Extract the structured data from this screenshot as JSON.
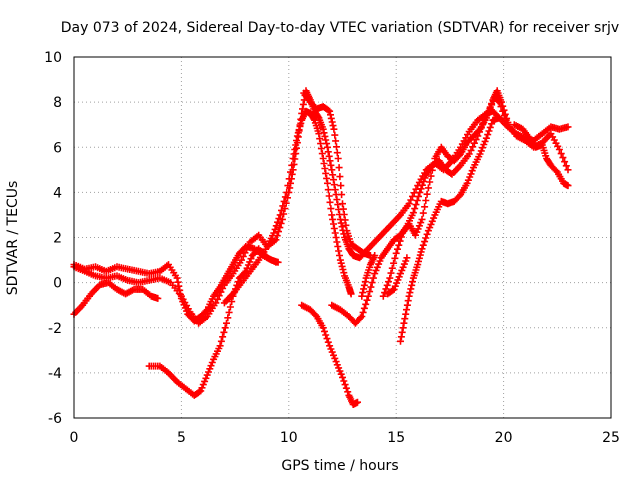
{
  "chart_data": {
    "type": "scatter",
    "title": "Day 073 of 2024, Sidereal Day-to-day VTEC variation (SDTVAR) for receiver srjv",
    "xlabel": "GPS time / hours",
    "ylabel": "SDTVAR / TECUs",
    "xlim": [
      0,
      25
    ],
    "ylim": [
      -6,
      10
    ],
    "xticks": [
      "0",
      "5",
      "10",
      "15",
      "20",
      "25"
    ],
    "yticks": [
      "-6",
      "-4",
      "-2",
      "0",
      "2",
      "4",
      "6",
      "8",
      "10"
    ],
    "grid": true,
    "marker": "+",
    "series": [
      {
        "color": "#ff0000",
        "points": [
          [
            0.0,
            0.8
          ],
          [
            0.5,
            0.6
          ],
          [
            1.0,
            0.7
          ],
          [
            1.5,
            0.5
          ],
          [
            2.0,
            0.7
          ],
          [
            2.5,
            0.6
          ],
          [
            3.0,
            0.5
          ],
          [
            3.5,
            0.4
          ],
          [
            4.0,
            0.5
          ],
          [
            4.4,
            0.8
          ],
          [
            4.8,
            0.2
          ],
          [
            5.0,
            -0.7
          ],
          [
            5.3,
            -1.4
          ],
          [
            5.6,
            -1.7
          ],
          [
            5.9,
            -1.5
          ],
          [
            6.2,
            -1.2
          ],
          [
            6.5,
            -0.6
          ],
          [
            6.8,
            -0.2
          ],
          [
            7.1,
            0.3
          ],
          [
            7.4,
            0.8
          ],
          [
            7.7,
            1.3
          ],
          [
            8.0,
            1.6
          ],
          [
            8.4,
            1.5
          ],
          [
            8.8,
            1.2
          ],
          [
            9.2,
            1.0
          ],
          [
            9.5,
            0.9
          ]
        ]
      },
      {
        "color": "#ff0000",
        "points": [
          [
            0.0,
            0.7
          ],
          [
            0.5,
            0.5
          ],
          [
            1.0,
            0.3
          ],
          [
            1.5,
            0.2
          ],
          [
            2.0,
            0.3
          ],
          [
            2.5,
            0.1
          ],
          [
            3.0,
            0.0
          ],
          [
            3.5,
            0.1
          ],
          [
            4.0,
            0.2
          ],
          [
            4.5,
            0.0
          ],
          [
            5.0,
            -0.6
          ],
          [
            5.4,
            -1.3
          ],
          [
            5.8,
            -1.8
          ],
          [
            6.2,
            -1.5
          ],
          [
            6.6,
            -0.9
          ],
          [
            7.0,
            -0.1
          ],
          [
            7.4,
            0.4
          ],
          [
            7.8,
            1.0
          ],
          [
            8.2,
            1.8
          ],
          [
            8.6,
            2.1
          ],
          [
            9.0,
            1.6
          ],
          [
            9.4,
            1.9
          ],
          [
            9.7,
            2.8
          ],
          [
            10.0,
            4.0
          ],
          [
            10.2,
            5.0
          ],
          [
            10.4,
            6.2
          ],
          [
            10.6,
            7.5
          ],
          [
            10.8,
            8.5
          ],
          [
            11.0,
            8.1
          ],
          [
            11.2,
            7.6
          ],
          [
            11.4,
            7.3
          ],
          [
            11.6,
            6.8
          ],
          [
            11.8,
            6.0
          ],
          [
            12.0,
            5.0
          ],
          [
            12.2,
            3.9
          ],
          [
            12.4,
            2.8
          ],
          [
            12.6,
            2.0
          ],
          [
            12.8,
            1.5
          ],
          [
            13.0,
            1.2
          ],
          [
            13.3,
            1.1
          ],
          [
            13.6,
            1.4
          ],
          [
            14.0,
            1.8
          ],
          [
            14.4,
            2.2
          ],
          [
            14.8,
            2.6
          ],
          [
            15.2,
            3.0
          ],
          [
            15.6,
            3.5
          ],
          [
            16.0,
            4.3
          ],
          [
            16.4,
            5.0
          ],
          [
            16.8,
            5.3
          ],
          [
            17.2,
            5.0
          ],
          [
            17.6,
            5.4
          ],
          [
            18.0,
            6.0
          ],
          [
            18.4,
            6.7
          ],
          [
            18.8,
            7.2
          ],
          [
            19.2,
            7.5
          ],
          [
            19.5,
            7.6
          ],
          [
            19.8,
            7.3
          ],
          [
            20.2,
            6.9
          ],
          [
            20.6,
            6.6
          ],
          [
            21.0,
            6.4
          ],
          [
            21.4,
            6.3
          ],
          [
            21.8,
            6.6
          ],
          [
            22.2,
            6.9
          ],
          [
            22.6,
            6.8
          ],
          [
            23.0,
            6.9
          ]
        ]
      },
      {
        "color": "#ff0000",
        "points": [
          [
            0.0,
            -1.4
          ],
          [
            0.4,
            -1.0
          ],
          [
            0.8,
            -0.5
          ],
          [
            1.2,
            -0.1
          ],
          [
            1.6,
            0.0
          ],
          [
            2.0,
            -0.3
          ],
          [
            2.4,
            -0.5
          ],
          [
            2.8,
            -0.3
          ],
          [
            3.2,
            -0.3
          ],
          [
            3.6,
            -0.6
          ],
          [
            3.9,
            -0.7
          ]
        ]
      },
      {
        "color": "#ff0000",
        "points": [
          [
            3.5,
            -3.7
          ],
          [
            4.0,
            -3.7
          ],
          [
            4.4,
            -4.0
          ],
          [
            4.8,
            -4.4
          ],
          [
            5.2,
            -4.7
          ],
          [
            5.6,
            -5.0
          ],
          [
            5.9,
            -4.8
          ],
          [
            6.2,
            -4.1
          ],
          [
            6.5,
            -3.4
          ],
          [
            6.8,
            -2.8
          ],
          [
            7.1,
            -1.8
          ],
          [
            7.4,
            -0.6
          ],
          [
            7.7,
            0.2
          ],
          [
            8.0,
            0.5
          ],
          [
            8.3,
            1.2
          ],
          [
            8.6,
            1.5
          ],
          [
            9.0,
            1.1
          ],
          [
            9.4,
            0.9
          ]
        ]
      },
      {
        "color": "#ff0000",
        "points": [
          [
            7.0,
            -0.9
          ],
          [
            7.4,
            -0.5
          ],
          [
            7.8,
            0.0
          ],
          [
            8.2,
            0.5
          ],
          [
            8.6,
            1.0
          ],
          [
            9.0,
            1.6
          ],
          [
            9.3,
            2.2
          ],
          [
            9.6,
            3.0
          ],
          [
            9.9,
            4.0
          ],
          [
            10.2,
            5.5
          ],
          [
            10.4,
            6.5
          ],
          [
            10.6,
            7.2
          ],
          [
            10.8,
            7.6
          ],
          [
            11.0,
            7.5
          ],
          [
            11.2,
            7.2
          ],
          [
            11.4,
            6.6
          ],
          [
            11.6,
            5.5
          ],
          [
            11.8,
            4.4
          ],
          [
            12.0,
            3.0
          ],
          [
            12.2,
            2.0
          ],
          [
            12.4,
            1.0
          ],
          [
            12.6,
            0.3
          ],
          [
            12.8,
            -0.2
          ],
          [
            12.9,
            -0.5
          ]
        ]
      },
      {
        "color": "#ff0000",
        "points": [
          [
            10.6,
            -1.0
          ],
          [
            11.0,
            -1.2
          ],
          [
            11.3,
            -1.5
          ],
          [
            11.6,
            -2.0
          ],
          [
            11.9,
            -2.8
          ],
          [
            12.2,
            -3.5
          ],
          [
            12.5,
            -4.2
          ],
          [
            12.8,
            -5.0
          ],
          [
            13.0,
            -5.4
          ],
          [
            13.2,
            -5.3
          ]
        ]
      },
      {
        "color": "#ff0000",
        "points": [
          [
            10.7,
            8.4
          ],
          [
            11.0,
            8.0
          ],
          [
            11.3,
            7.7
          ],
          [
            11.6,
            7.8
          ],
          [
            11.9,
            7.6
          ],
          [
            12.1,
            6.8
          ],
          [
            12.3,
            5.5
          ],
          [
            12.5,
            3.5
          ],
          [
            12.7,
            2.3
          ],
          [
            12.9,
            1.7
          ],
          [
            13.2,
            1.5
          ],
          [
            13.5,
            1.3
          ],
          [
            13.8,
            1.2
          ]
        ]
      },
      {
        "color": "#ff0000",
        "points": [
          [
            12.0,
            -1.0
          ],
          [
            12.4,
            -1.2
          ],
          [
            12.8,
            -1.5
          ],
          [
            13.1,
            -1.8
          ],
          [
            13.4,
            -1.5
          ],
          [
            13.7,
            -0.6
          ],
          [
            14.0,
            0.4
          ],
          [
            14.3,
            1.1
          ],
          [
            14.6,
            1.5
          ],
          [
            14.9,
            1.9
          ],
          [
            15.2,
            2.1
          ],
          [
            15.5,
            2.5
          ],
          [
            15.8,
            3.1
          ],
          [
            16.1,
            4.0
          ],
          [
            16.4,
            4.8
          ],
          [
            16.7,
            5.2
          ],
          [
            17.0,
            5.4
          ],
          [
            17.3,
            5.0
          ],
          [
            17.6,
            4.8
          ],
          [
            18.0,
            5.2
          ],
          [
            18.4,
            5.7
          ],
          [
            18.8,
            6.5
          ],
          [
            19.2,
            7.4
          ],
          [
            19.6,
            8.2
          ],
          [
            19.8,
            8.0
          ],
          [
            20.2,
            7.0
          ],
          [
            20.6,
            6.5
          ],
          [
            21.0,
            6.3
          ],
          [
            21.4,
            6.0
          ],
          [
            21.8,
            6.2
          ],
          [
            22.2,
            6.6
          ],
          [
            22.6,
            5.9
          ],
          [
            23.0,
            5.0
          ]
        ]
      },
      {
        "color": "#ff0000",
        "points": [
          [
            14.4,
            -0.6
          ],
          [
            14.7,
            0.2
          ],
          [
            15.0,
            1.3
          ],
          [
            15.3,
            2.2
          ],
          [
            15.6,
            2.6
          ],
          [
            15.9,
            2.1
          ],
          [
            16.2,
            2.8
          ],
          [
            16.5,
            4.2
          ],
          [
            16.8,
            5.5
          ],
          [
            17.1,
            6.0
          ],
          [
            17.4,
            5.6
          ],
          [
            17.7,
            5.4
          ],
          [
            18.0,
            5.7
          ],
          [
            18.3,
            6.2
          ],
          [
            18.6,
            6.5
          ],
          [
            18.9,
            6.8
          ],
          [
            19.2,
            7.3
          ],
          [
            19.5,
            8.1
          ],
          [
            19.7,
            8.5
          ],
          [
            19.9,
            8.0
          ],
          [
            20.2,
            7.1
          ]
        ]
      },
      {
        "color": "#ff0000",
        "points": [
          [
            15.2,
            -2.6
          ],
          [
            15.4,
            -1.6
          ],
          [
            15.6,
            -0.6
          ],
          [
            15.8,
            0.2
          ],
          [
            16.0,
            0.8
          ],
          [
            16.2,
            1.5
          ],
          [
            16.5,
            2.3
          ],
          [
            16.8,
            3.0
          ],
          [
            17.1,
            3.6
          ],
          [
            17.4,
            3.5
          ],
          [
            17.7,
            3.6
          ],
          [
            18.0,
            3.9
          ],
          [
            18.3,
            4.4
          ],
          [
            18.6,
            5.1
          ],
          [
            18.9,
            5.7
          ],
          [
            19.2,
            6.4
          ],
          [
            19.5,
            7.2
          ],
          [
            19.8,
            7.3
          ]
        ]
      },
      {
        "color": "#ff0000",
        "points": [
          [
            13.4,
            -0.6
          ],
          [
            13.6,
            0.2
          ],
          [
            13.8,
            0.8
          ],
          [
            14.0,
            1.2
          ]
        ]
      },
      {
        "color": "#ff0000",
        "points": [
          [
            14.6,
            -0.5
          ],
          [
            14.9,
            -0.3
          ],
          [
            15.2,
            0.4
          ],
          [
            15.5,
            1.1
          ]
        ]
      },
      {
        "color": "#ff0000",
        "points": [
          [
            20.5,
            7.0
          ],
          [
            20.9,
            6.8
          ],
          [
            21.2,
            6.4
          ],
          [
            21.5,
            6.0
          ],
          [
            21.8,
            6.1
          ],
          [
            22.0,
            5.5
          ],
          [
            22.2,
            5.2
          ],
          [
            22.5,
            4.9
          ],
          [
            22.8,
            4.4
          ],
          [
            23.0,
            4.3
          ]
        ]
      }
    ]
  }
}
